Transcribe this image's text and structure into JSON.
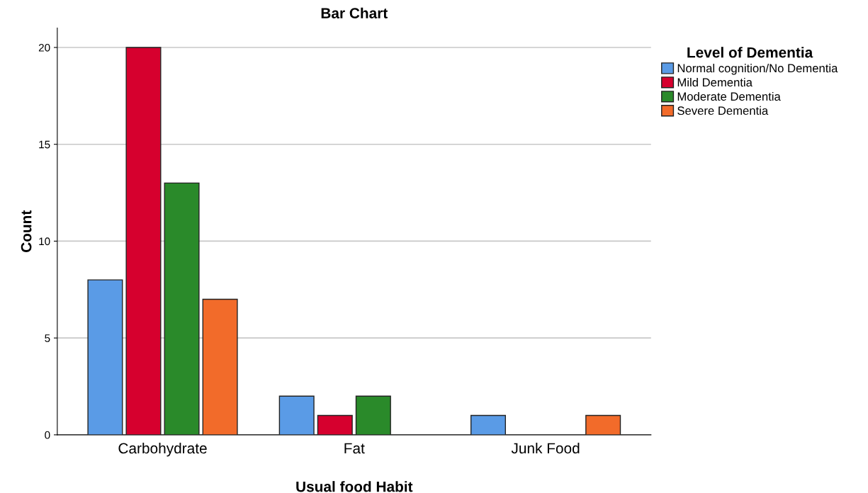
{
  "chart_data": {
    "type": "bar",
    "title": "Bar Chart",
    "xlabel": "Usual food Habit",
    "ylabel": "Count",
    "legend_title": "Level of Dementia",
    "categories": [
      "Carbohydrate",
      "Fat",
      "Junk Food"
    ],
    "series": [
      {
        "name": "Normal cognition/No Dementia",
        "color": "#5a9be6",
        "values": [
          8,
          2,
          1
        ]
      },
      {
        "name": "Mild Dementia",
        "color": "#d6002e",
        "values": [
          20,
          1,
          0
        ]
      },
      {
        "name": "Moderate Dementia",
        "color": "#2a8a2a",
        "values": [
          13,
          2,
          0
        ]
      },
      {
        "name": "Severe Dementia",
        "color": "#f26b2a",
        "values": [
          7,
          0,
          1
        ]
      }
    ],
    "ylim": [
      0,
      21
    ],
    "yticks": [
      0,
      5,
      10,
      15,
      20
    ],
    "grid": "y",
    "legend": "top right"
  }
}
